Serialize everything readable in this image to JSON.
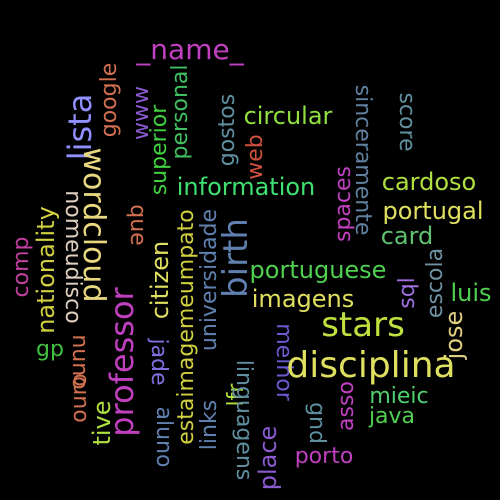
{
  "words": [
    {
      "text": "_name_",
      "color": "#c040c0"
    },
    {
      "text": "google",
      "color": "#d07050"
    },
    {
      "text": "lista",
      "color": "#9090ff"
    },
    {
      "text": "wordcloud",
      "color": "#e8d880"
    },
    {
      "text": "www",
      "color": "#8a5bd0"
    },
    {
      "text": "superior",
      "color": "#40d040"
    },
    {
      "text": "personal",
      "color": "#40c060"
    },
    {
      "text": "gostos",
      "color": "#6090a0"
    },
    {
      "text": "circular",
      "color": "#90e040"
    },
    {
      "text": "sinceramente",
      "color": "#6080a0"
    },
    {
      "text": "score",
      "color": "#6090a0"
    },
    {
      "text": "web",
      "color": "#d05040"
    },
    {
      "text": "information",
      "color": "#40e070"
    },
    {
      "text": "spaces",
      "color": "#c040c0"
    },
    {
      "text": "cardoso",
      "color": "#b0e040"
    },
    {
      "text": "portugal",
      "color": "#e0e060"
    },
    {
      "text": "card",
      "color": "#60c070"
    },
    {
      "text": "nomeudisco",
      "color": "#e0d0c0"
    },
    {
      "text": "nationality",
      "color": "#d0d040"
    },
    {
      "text": "comp",
      "color": "#c040a0"
    },
    {
      "text": "que",
      "color": "#d07050"
    },
    {
      "text": "estaimagemeumpato",
      "color": "#d0d040"
    },
    {
      "text": "universidade",
      "color": "#6080b0"
    },
    {
      "text": "birth",
      "color": "#6080b0"
    },
    {
      "text": "professor",
      "color": "#c040c0"
    },
    {
      "text": "citizen",
      "color": "#e0e060"
    },
    {
      "text": "portuguese",
      "color": "#50d050"
    },
    {
      "text": "escola",
      "color": "#7090a0"
    },
    {
      "text": "imagens",
      "color": "#e0e060"
    },
    {
      "text": "sql",
      "color": "#a070e0"
    },
    {
      "text": "luis",
      "color": "#50d050"
    },
    {
      "text": "stars",
      "color": "#c0e040"
    },
    {
      "text": "jose",
      "color": "#e0d080"
    },
    {
      "text": "gp",
      "color": "#40c040"
    },
    {
      "text": "nuno",
      "color": "#d07050"
    },
    {
      "text": "jade",
      "color": "#8070e0"
    },
    {
      "text": "melhor",
      "color": "#6a5bd0"
    },
    {
      "text": "disciplina",
      "color": "#e0e060"
    },
    {
      "text": "ouro",
      "color": "#d07050"
    },
    {
      "text": "links",
      "color": "#6080b0"
    },
    {
      "text": "lfr",
      "color": "#b0e040"
    },
    {
      "text": "linguagens",
      "color": "#6090a0"
    },
    {
      "text": "mieic",
      "color": "#50d070"
    },
    {
      "text": "asso",
      "color": "#c040c0"
    },
    {
      "text": "java",
      "color": "#50d050"
    },
    {
      "text": "tive",
      "color": "#b0e040"
    },
    {
      "text": "aluno",
      "color": "#6080b0"
    },
    {
      "text": "place",
      "color": "#8a5bd0"
    },
    {
      "text": "gnd",
      "color": "#6090a0"
    },
    {
      "text": "porto",
      "color": "#c040c0"
    }
  ]
}
